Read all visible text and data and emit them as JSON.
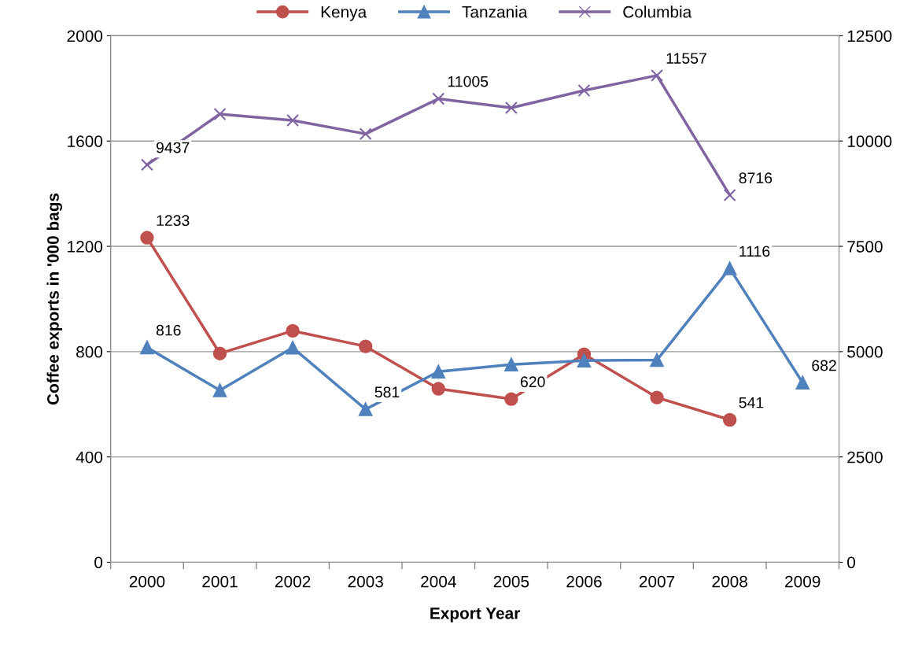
{
  "chart_data": {
    "type": "line",
    "xlabel": "Export Year",
    "ylabel": "Coffee exports in '000 bags",
    "categories": [
      "2000",
      "2001",
      "2002",
      "2003",
      "2004",
      "2005",
      "2006",
      "2007",
      "2008",
      "2009"
    ],
    "ylim": [
      0,
      2000
    ],
    "yticks": [
      0,
      400,
      800,
      1200,
      1600,
      2000
    ],
    "y2lim": [
      0,
      12500
    ],
    "y2ticks": [
      0,
      2500,
      5000,
      7500,
      10000,
      12500
    ],
    "grid": "y",
    "legend": "top",
    "series": [
      {
        "name": "Kenya",
        "color": "#c0504d",
        "marker": "circle",
        "values": [
          1233,
          793,
          879,
          820,
          659,
          620,
          790,
          626,
          541,
          null
        ],
        "value_labels": [
          "1233",
          null,
          null,
          null,
          null,
          "620",
          null,
          null,
          "541",
          null
        ]
      },
      {
        "name": "Tanzania",
        "color": "#4f81bd",
        "marker": "triangle",
        "values": [
          816,
          653,
          815,
          581,
          724,
          751,
          766,
          768,
          1116,
          682
        ],
        "value_labels": [
          "816",
          null,
          null,
          "581",
          null,
          null,
          null,
          null,
          "1116",
          "682"
        ]
      },
      {
        "name": "Columbia",
        "color": "#8064a2",
        "marker": "cross",
        "axis": "y2",
        "values": [
          9437,
          10640,
          10490,
          10170,
          11005,
          10790,
          11200,
          11557,
          8716,
          null
        ],
        "value_labels": [
          "9437",
          null,
          null,
          null,
          "11005",
          null,
          null,
          "11557",
          "8716",
          null
        ]
      }
    ]
  }
}
